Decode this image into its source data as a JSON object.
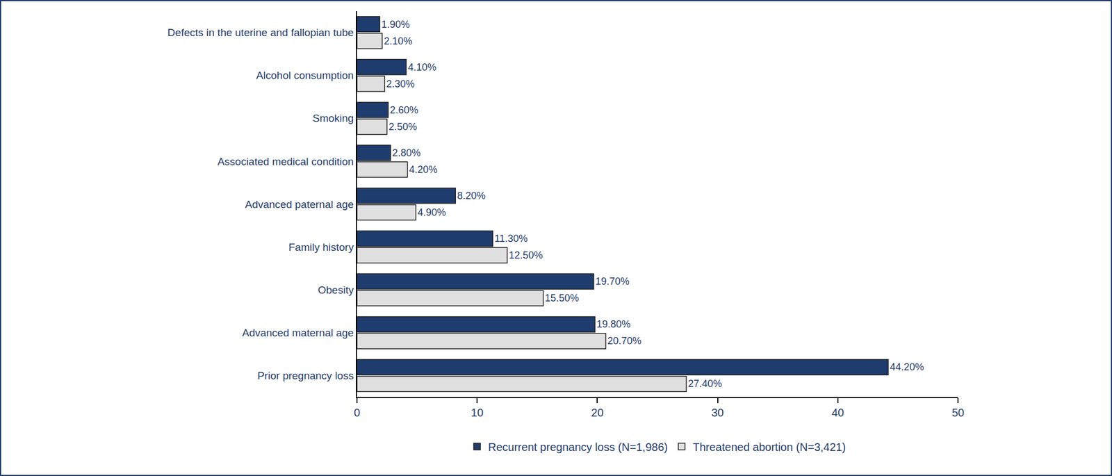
{
  "chart_data": {
    "type": "bar",
    "orientation": "horizontal",
    "categories": [
      "Defects in the uterine and fallopian tube",
      "Alcohol consumption",
      "Smoking",
      "Associated medical condition",
      "Advanced paternal age",
      "Family history",
      "Obesity",
      "Advanced maternal age",
      "Prior pregnancy loss"
    ],
    "series": [
      {
        "name": "Recurrent pregnancy loss (N=1,986)",
        "color": "#1f3c6e",
        "values": [
          1.9,
          4.1,
          2.6,
          2.8,
          8.2,
          11.3,
          19.7,
          19.8,
          44.2
        ],
        "value_labels": [
          "1.90%",
          "4.10%",
          "2.60%",
          "2.80%",
          "8.20%",
          "11.30%",
          "19.70%",
          "19.80%",
          "44.20%"
        ]
      },
      {
        "name": "Threatened abortion (N=3,421)",
        "color": "#e0e0e0",
        "values": [
          2.1,
          2.3,
          2.5,
          4.2,
          4.9,
          12.5,
          15.5,
          20.7,
          27.4
        ],
        "value_labels": [
          "2.10%",
          "2.30%",
          "2.50%",
          "4.20%",
          "4.90%",
          "12.50%",
          "15.50%",
          "20.70%",
          "27.40%"
        ]
      }
    ],
    "xlim": [
      0,
      50
    ],
    "xticks": [
      0,
      10,
      20,
      30,
      40,
      50
    ],
    "data_labels": true,
    "legend": "bottom",
    "grid": false
  }
}
